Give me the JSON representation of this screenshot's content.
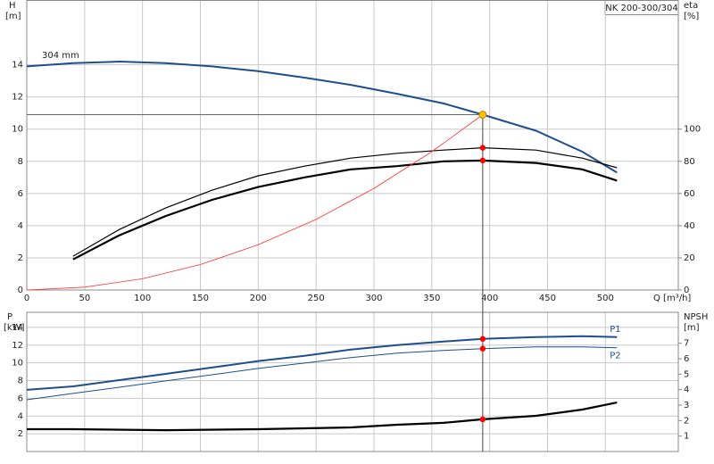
{
  "chart_data": [
    {
      "type": "line",
      "title": "NK 200-300/304",
      "annotation": "304 mm",
      "y_label": "H",
      "y_unit": "[m]",
      "y2_label": "eta",
      "y2_unit": "[%]",
      "x_label": "Q [m³/h]",
      "xlim": [
        0,
        563
      ],
      "xticks": [
        0,
        50,
        100,
        150,
        200,
        250,
        300,
        350,
        400,
        450,
        500
      ],
      "ylim": [
        0,
        18
      ],
      "yticks": [
        0,
        2,
        4,
        6,
        8,
        10,
        12,
        14
      ],
      "y2lim": [
        0,
        180
      ],
      "y2ticks": [
        0,
        20,
        40,
        60,
        80,
        100
      ],
      "grid": true,
      "duty_point": {
        "x": 394,
        "y": 10.9,
        "color": "#ffc000"
      },
      "marker_color": "#ff0000",
      "series": [
        {
          "color": "#1f4e8c",
          "width": 2,
          "x": [
            0,
            40,
            80,
            120,
            160,
            200,
            240,
            280,
            320,
            360,
            394,
            440,
            480,
            510
          ],
          "values": [
            13.9,
            14.1,
            14.2,
            14.1,
            13.9,
            13.6,
            13.2,
            12.75,
            12.2,
            11.6,
            10.9,
            9.9,
            8.6,
            7.3
          ]
        },
        {
          "color": "#000000",
          "width": 1.2,
          "axis": "y2",
          "x": [
            40,
            80,
            120,
            160,
            200,
            240,
            280,
            320,
            360,
            394,
            440,
            480,
            510
          ],
          "values": [
            21,
            37.6,
            51,
            62,
            71,
            77,
            82,
            85,
            87,
            88.4,
            87,
            82,
            76
          ]
        },
        {
          "color": "#000000",
          "width": 2.2,
          "axis": "y2",
          "x": [
            40,
            80,
            120,
            160,
            200,
            240,
            280,
            320,
            360,
            394,
            440,
            480,
            510
          ],
          "values": [
            19,
            34,
            46,
            56,
            64,
            70,
            75,
            77,
            80,
            80.5,
            79,
            75,
            68
          ]
        },
        {
          "color": "#ff3030",
          "width": 0.8,
          "x": [
            0,
            50,
            100,
            150,
            200,
            250,
            300,
            350,
            394
          ],
          "values": [
            0,
            0.18,
            0.7,
            1.58,
            2.81,
            4.39,
            6.32,
            8.6,
            10.9
          ]
        }
      ]
    },
    {
      "type": "line",
      "y_label": "P",
      "y_unit": "[kW]",
      "y2_label": "NPSH",
      "y2_unit": "[m]",
      "xlim": [
        0,
        563
      ],
      "ylim": [
        0,
        15.7
      ],
      "yticks": [
        2,
        4,
        6,
        8,
        10,
        12,
        14
      ],
      "y2lim": [
        0,
        9
      ],
      "y2ticks": [
        1,
        2,
        3,
        4,
        5,
        6,
        7
      ],
      "grid": true,
      "duty_x": 394,
      "marker_color": "#ff0000",
      "series": [
        {
          "name": "P1",
          "color": "#1f4e8c",
          "width": 2,
          "x": [
            0,
            40,
            80,
            120,
            160,
            200,
            240,
            280,
            320,
            360,
            394,
            440,
            480,
            510
          ],
          "values": [
            6.95,
            7.35,
            8.05,
            8.76,
            9.47,
            10.2,
            10.8,
            11.5,
            12.0,
            12.4,
            12.7,
            12.9,
            13.0,
            12.9
          ]
        },
        {
          "name": "P2",
          "color": "#1f4e8c",
          "width": 1,
          "x": [
            0,
            40,
            80,
            120,
            160,
            200,
            240,
            280,
            320,
            360,
            394,
            440,
            480,
            510
          ],
          "values": [
            5.84,
            6.55,
            7.25,
            7.96,
            8.66,
            9.37,
            9.97,
            10.6,
            11.1,
            11.4,
            11.6,
            11.8,
            11.8,
            11.7
          ]
        },
        {
          "color": "#000000",
          "width": 2.2,
          "axis": "y2",
          "x": [
            0,
            40,
            120,
            200,
            280,
            320,
            360,
            394,
            440,
            480,
            510
          ],
          "values": [
            1.44,
            1.44,
            1.38,
            1.44,
            1.56,
            1.73,
            1.85,
            2.08,
            2.31,
            2.71,
            3.17
          ]
        }
      ]
    }
  ]
}
